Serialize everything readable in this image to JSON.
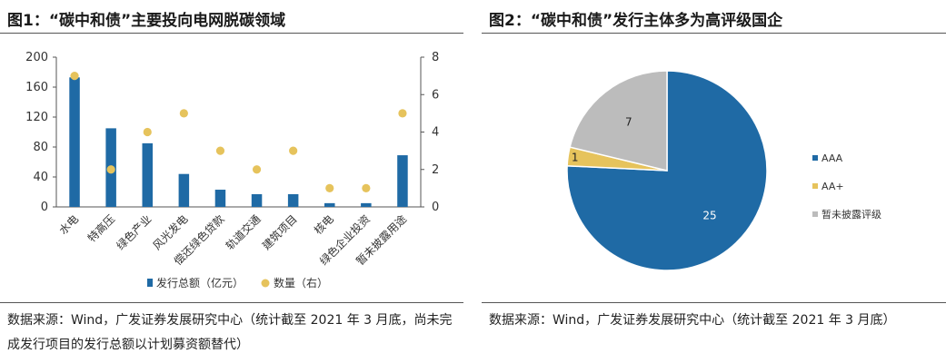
{
  "left": {
    "title": "图1：“碳中和债”主要投向电网脱碳领域",
    "source": "数据来源：Wind，广发证券发展研究中心（统计截至 2021 年 3 月底，尚未完成发行项目的发行总额以计划募资额替代）"
  },
  "right": {
    "title": "图2：“碳中和债”发行主体多为高评级国企",
    "source": "数据来源：Wind，广发证券发展研究中心（统计截至 2021 年 3 月底）"
  },
  "colors": {
    "bar": "#1f6aa5",
    "dot": "#e6c35c",
    "pie_aaa": "#1f6aa5",
    "pie_aaplus": "#e6c35c",
    "pie_unrated": "#bcbcbc"
  },
  "chart_data": [
    {
      "type": "bar",
      "title": "图1：“碳中和债”主要投向电网脱碳领域",
      "categories": [
        "水电",
        "特高压",
        "绿色产业",
        "风光发电",
        "偿还绿色贷款",
        "轨道交通",
        "建筑项目",
        "核电",
        "绿色企业投资",
        "暂未披露用途"
      ],
      "series": [
        {
          "name": "发行总额（亿元）",
          "axis": "left",
          "style": "bar",
          "values": [
            173,
            105,
            85,
            44,
            23,
            17,
            17,
            5,
            5,
            69
          ]
        },
        {
          "name": "数量（右）",
          "axis": "right",
          "style": "dot",
          "values": [
            7,
            2,
            4,
            5,
            3,
            2,
            3,
            1,
            1,
            5
          ]
        }
      ],
      "yticks_left": [
        0,
        40,
        80,
        120,
        160,
        200
      ],
      "yticks_right": [
        0,
        2,
        4,
        6,
        8
      ],
      "ylim_left": [
        0,
        200
      ],
      "ylim_right": [
        0,
        8
      ],
      "legend": "bottom",
      "grid": false
    },
    {
      "type": "pie",
      "title": "图2：“碳中和债”发行主体多为高评级国企",
      "slices": [
        {
          "name": "AAA",
          "value": 25
        },
        {
          "name": "AA+",
          "value": 1
        },
        {
          "name": "暂未披露评级",
          "value": 7
        }
      ],
      "legend": "right"
    }
  ]
}
